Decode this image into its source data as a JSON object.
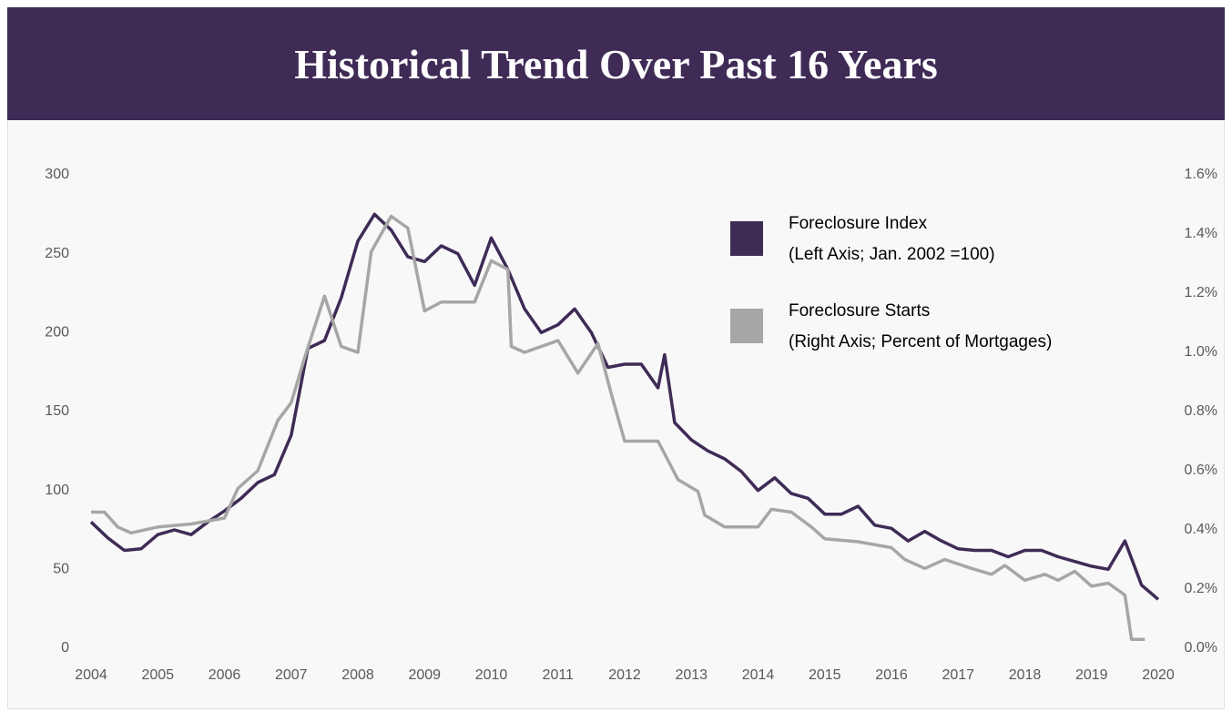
{
  "chart_data": {
    "type": "line",
    "title": "Historical Trend Over Past 16 Years",
    "xlim": [
      2004,
      2020
    ],
    "xticks": [
      2004,
      2005,
      2006,
      2007,
      2008,
      2009,
      2010,
      2011,
      2012,
      2013,
      2014,
      2015,
      2016,
      2017,
      2018,
      2019,
      2020
    ],
    "ylim": [
      0,
      300
    ],
    "yticks": [
      0,
      50,
      100,
      150,
      200,
      250,
      300
    ],
    "y2lim": [
      0,
      1.6
    ],
    "y2ticks": [
      {
        "value": 0,
        "label": "0.0%"
      },
      {
        "value": 0.2,
        "label": "0.2%"
      },
      {
        "value": 0.4,
        "label": "0.4%"
      },
      {
        "value": 0.6,
        "label": "0.6%"
      },
      {
        "value": 0.8,
        "label": "0.8%"
      },
      {
        "value": 1.0,
        "label": "1.0%"
      },
      {
        "value": 1.2,
        "label": "1.2%"
      },
      {
        "value": 1.4,
        "label": "1.4%"
      },
      {
        "value": 1.6,
        "label": "1.6%"
      }
    ],
    "legend": "upper right",
    "series": [
      {
        "name": "Foreclosure Index",
        "description": "(Left Axis; Jan. 2002 =100)",
        "color": "#3f2b56",
        "axis": "y",
        "x": [
          2004,
          2004.25,
          2004.5,
          2004.75,
          2005,
          2005.25,
          2005.5,
          2005.75,
          2006,
          2006.25,
          2006.5,
          2006.75,
          2007,
          2007.25,
          2007.5,
          2007.75,
          2008,
          2008.25,
          2008.5,
          2008.75,
          2009,
          2009.25,
          2009.5,
          2009.75,
          2010,
          2010.25,
          2010.5,
          2010.75,
          2011,
          2011.25,
          2011.5,
          2011.75,
          2012,
          2012.25,
          2012.5,
          2012.6,
          2012.75,
          2013,
          2013.25,
          2013.5,
          2013.75,
          2014,
          2014.25,
          2014.5,
          2014.75,
          2015,
          2015.25,
          2015.5,
          2015.75,
          2016,
          2016.25,
          2016.5,
          2016.75,
          2017,
          2017.25,
          2017.5,
          2017.75,
          2018,
          2018.25,
          2018.5,
          2018.75,
          2019,
          2019.25,
          2019.5,
          2019.75,
          2020
        ],
        "values": [
          80,
          70,
          62,
          63,
          72,
          75,
          72,
          80,
          87,
          95,
          105,
          110,
          135,
          190,
          195,
          222,
          258,
          275,
          265,
          248,
          245,
          255,
          250,
          230,
          260,
          240,
          215,
          200,
          205,
          215,
          200,
          178,
          180,
          180,
          165,
          186,
          143,
          132,
          125,
          120,
          112,
          100,
          108,
          98,
          95,
          85,
          85,
          90,
          78,
          76,
          68,
          74,
          68,
          63,
          62,
          62,
          58,
          62,
          62,
          58,
          55,
          52,
          50,
          68,
          40,
          31
        ]
      },
      {
        "name": "Foreclosure Starts",
        "description": "(Right Axis; Percent of Mortgages)",
        "color": "#a6a6a6",
        "axis": "y2",
        "x": [
          2004,
          2004.2,
          2004.4,
          2004.6,
          2005,
          2005.5,
          2006,
          2006.2,
          2006.5,
          2006.8,
          2007,
          2007.2,
          2007.5,
          2007.75,
          2008,
          2008.2,
          2008.5,
          2008.75,
          2009,
          2009.25,
          2009.75,
          2010,
          2010.25,
          2010.3,
          2010.5,
          2011,
          2011.3,
          2011.6,
          2011.8,
          2012,
          2012.5,
          2012.8,
          2013.1,
          2013.2,
          2013.5,
          2014,
          2014.2,
          2014.5,
          2014.8,
          2015,
          2015.5,
          2016,
          2016.2,
          2016.5,
          2016.8,
          2017.2,
          2017.5,
          2017.7,
          2018,
          2018.3,
          2018.5,
          2018.75,
          2019,
          2019.25,
          2019.5,
          2019.6,
          2019.8
        ],
        "values": [
          0.46,
          0.46,
          0.41,
          0.39,
          0.41,
          0.42,
          0.44,
          0.54,
          0.6,
          0.77,
          0.83,
          0.98,
          1.19,
          1.02,
          1.0,
          1.34,
          1.46,
          1.42,
          1.14,
          1.17,
          1.17,
          1.31,
          1.28,
          1.02,
          1.0,
          1.04,
          0.93,
          1.03,
          0.86,
          0.7,
          0.7,
          0.57,
          0.53,
          0.45,
          0.41,
          0.41,
          0.47,
          0.46,
          0.41,
          0.37,
          0.36,
          0.34,
          0.3,
          0.27,
          0.3,
          0.27,
          0.25,
          0.28,
          0.23,
          0.25,
          0.23,
          0.26,
          0.21,
          0.22,
          0.18,
          0.03,
          0.03
        ]
      }
    ]
  }
}
